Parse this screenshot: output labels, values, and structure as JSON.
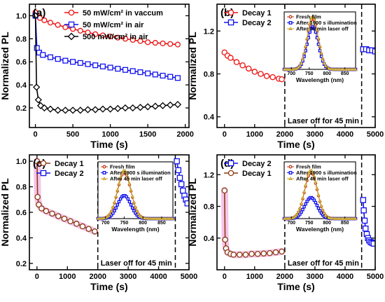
{
  "chart_data": [
    {
      "panel_label": "(a)",
      "type": "scatter",
      "xlabel": "Time (s)",
      "ylabel": "Normalized PL",
      "xlim": [
        -80,
        2050
      ],
      "ylim": [
        0.03,
        1.1
      ],
      "xticks": [
        0,
        500,
        1000,
        1500,
        2000
      ],
      "yticks": [
        0.2,
        0.4,
        0.6,
        0.8,
        1.0
      ],
      "ytick_labels": [
        "0.2",
        "0.4",
        "0.6",
        "0.8",
        "1.0"
      ],
      "legend_position": "top-right",
      "series": [
        {
          "name": "50 mW/cm² in vaccum",
          "color": "#ee1111",
          "marker": "circle",
          "x": [
            0,
            25,
            60,
            120,
            200,
            300,
            400,
            500,
            600,
            700,
            800,
            900,
            1000,
            1100,
            1200,
            1300,
            1400,
            1500,
            1600,
            1700,
            1800,
            1900
          ],
          "y": [
            1.03,
            1.0,
            0.98,
            0.96,
            0.94,
            0.92,
            0.9,
            0.885,
            0.87,
            0.855,
            0.84,
            0.83,
            0.82,
            0.81,
            0.8,
            0.79,
            0.78,
            0.77,
            0.765,
            0.76,
            0.755,
            0.75
          ]
        },
        {
          "name": "50 mW/cm² in air",
          "color": "#1111ee",
          "marker": "square",
          "x": [
            0,
            20,
            50,
            100,
            200,
            300,
            400,
            500,
            600,
            700,
            800,
            900,
            1000,
            1100,
            1200,
            1300,
            1400,
            1500,
            1600,
            1700,
            1800,
            1900
          ],
          "y": [
            1.0,
            0.72,
            0.68,
            0.66,
            0.64,
            0.625,
            0.61,
            0.6,
            0.59,
            0.58,
            0.57,
            0.56,
            0.55,
            0.54,
            0.53,
            0.52,
            0.51,
            0.5,
            0.49,
            0.48,
            0.47,
            0.46
          ]
        },
        {
          "name": "500 mW/cm² in air",
          "color": "#000000",
          "marker": "diamond",
          "x": [
            0,
            15,
            40,
            70,
            120,
            200,
            300,
            400,
            500,
            600,
            700,
            800,
            900,
            1000,
            1100,
            1200,
            1300,
            1400,
            1500,
            1600,
            1700,
            1800,
            1900
          ],
          "y": [
            1.0,
            0.38,
            0.27,
            0.22,
            0.2,
            0.19,
            0.18,
            0.18,
            0.18,
            0.18,
            0.185,
            0.185,
            0.19,
            0.19,
            0.195,
            0.2,
            0.2,
            0.205,
            0.21,
            0.215,
            0.22,
            0.225,
            0.23
          ]
        }
      ]
    },
    {
      "panel_label": "(b)",
      "type": "scatter",
      "xlabel": "Time (s)",
      "ylabel": "Normalized PL",
      "xlim": [
        -250,
        5000
      ],
      "ylim": [
        0.3,
        1.45
      ],
      "xticks": [
        0,
        1000,
        2000,
        3000,
        4000,
        5000
      ],
      "yticks": [
        0.4,
        0.8,
        1.2
      ],
      "ytick_labels": [
        "0.4",
        "0.8",
        "1.2"
      ],
      "legend_position": "top-left",
      "dashed_lines_x": [
        2000,
        4550
      ],
      "annotation": "Laser off for 45 min",
      "series": [
        {
          "name": "Decay 1",
          "color": "#ee1111",
          "marker": "circle",
          "x": [
            0,
            100,
            200,
            400,
            600,
            800,
            1000,
            1200,
            1400,
            1600,
            1800,
            1900
          ],
          "y": [
            1.0,
            0.97,
            0.95,
            0.91,
            0.88,
            0.85,
            0.82,
            0.8,
            0.78,
            0.77,
            0.755,
            0.75
          ]
        },
        {
          "name": "Decay 2",
          "color": "#1111ee",
          "marker": "square",
          "x": [
            4600,
            4700,
            4800,
            4900,
            5000
          ],
          "y": [
            1.03,
            1.03,
            1.02,
            1.02,
            1.01
          ]
        }
      ],
      "inset": {
        "xlabel": "Wavelength (nm)",
        "xlim": [
          680,
          880
        ],
        "xticks": [
          700,
          750,
          800,
          850
        ],
        "legend_position": "top-left",
        "series": [
          {
            "name": "Fresh film",
            "color": "#c43c1a",
            "marker": "circle",
            "center": 760,
            "width": 22,
            "peak": 1.2
          },
          {
            "name": "After 1900 s illumination",
            "color": "#1111ee",
            "marker": "square",
            "center": 760,
            "width": 22,
            "peak": 1.0
          },
          {
            "name": "After 45 min laser off",
            "color": "#c8a020",
            "marker": "triangle",
            "center": 760,
            "width": 22,
            "peak": 1.25
          }
        ]
      }
    },
    {
      "panel_label": "(c)",
      "type": "scatter",
      "xlabel": "Time (s)",
      "ylabel": "Normalized PL",
      "xlim": [
        -250,
        5000
      ],
      "ylim": [
        0.15,
        1.05
      ],
      "xticks": [
        0,
        1000,
        2000,
        3000,
        4000,
        5000
      ],
      "yticks": [
        0.2,
        0.4,
        0.6,
        0.8,
        1.0
      ],
      "ytick_labels": [
        "0.2",
        "0.4",
        "0.6",
        "0.8",
        "1.0"
      ],
      "legend_position": "top-left",
      "dashed_lines_x": [
        2000,
        4550
      ],
      "annotation": "Laser off for 45 min",
      "series": [
        {
          "name": "Decay 1",
          "color": "#8b3a14",
          "marker": "circle",
          "x": [
            0,
            20,
            60,
            150,
            300,
            500,
            700,
            900,
            1100,
            1300,
            1500,
            1700,
            1900
          ],
          "y": [
            1.0,
            0.72,
            0.66,
            0.63,
            0.61,
            0.59,
            0.57,
            0.55,
            0.53,
            0.51,
            0.49,
            0.47,
            0.45
          ]
        },
        {
          "name": "Decay 2",
          "color": "#1111ee",
          "marker": "square",
          "x": [
            4600,
            4650,
            4700,
            4750,
            4800,
            4850,
            4900,
            4950
          ],
          "y": [
            1.0,
            0.93,
            0.87,
            0.82,
            0.77,
            0.73,
            0.7,
            0.67
          ]
        }
      ],
      "inset": {
        "xlabel": "Wavelength (nm)",
        "xlim": [
          680,
          880
        ],
        "xticks": [
          700,
          750,
          800,
          850
        ],
        "legend_position": "top-left",
        "series": [
          {
            "name": "Fresh film",
            "color": "#c43c1a",
            "marker": "circle",
            "center": 750,
            "width": 25,
            "peak": 1.1
          },
          {
            "name": "After 1900 s illumination",
            "color": "#1111ee",
            "marker": "square",
            "center": 750,
            "width": 25,
            "peak": 0.55
          },
          {
            "name": "After 45 min laser off",
            "color": "#c8a020",
            "marker": "triangle",
            "center": 750,
            "width": 25,
            "peak": 1.15
          }
        ]
      }
    },
    {
      "panel_label": "(d)",
      "type": "scatter",
      "xlabel": "Time (s)",
      "ylabel": "Normalized PL",
      "xlim": [
        -250,
        5000
      ],
      "ylim": [
        0.0,
        1.45
      ],
      "xticks": [
        0,
        1000,
        2000,
        3000,
        4000,
        5000
      ],
      "yticks": [
        0.4,
        0.8,
        1.2
      ],
      "ytick_labels": [
        "0.4",
        "0.8",
        "1.2"
      ],
      "legend_position": "top-left",
      "dashed_lines_x": [
        2000,
        4550
      ],
      "annotation": "Laser off for 45 min",
      "series": [
        {
          "name": "Decay 2",
          "color": "#1111ee",
          "marker": "square",
          "x": [
            4600,
            4620,
            4650,
            4680,
            4720,
            4760,
            4800,
            4850,
            4900,
            4950
          ],
          "y": [
            0.88,
            0.75,
            0.62,
            0.52,
            0.45,
            0.4,
            0.37,
            0.35,
            0.34,
            0.33
          ]
        },
        {
          "name": "Decay 1",
          "color": "#8b3a14",
          "marker": "circle",
          "x": [
            0,
            20,
            50,
            100,
            200,
            300,
            500,
            700,
            900,
            1100,
            1300,
            1500,
            1700,
            1900
          ],
          "y": [
            1.0,
            0.38,
            0.27,
            0.22,
            0.2,
            0.19,
            0.19,
            0.19,
            0.2,
            0.2,
            0.205,
            0.21,
            0.22,
            0.23
          ]
        }
      ],
      "inset": {
        "xlabel": "Wavelength (nm)",
        "xlim": [
          680,
          880
        ],
        "xticks": [
          700,
          750,
          800,
          850
        ],
        "legend_position": "top-left",
        "series": [
          {
            "name": "Fresh film",
            "color": "#c43c1a",
            "marker": "circle",
            "center": 755,
            "width": 25,
            "peak": 1.1
          },
          {
            "name": "After 1900 s illumination",
            "color": "#1111ee",
            "marker": "square",
            "center": 755,
            "width": 25,
            "peak": 0.5
          },
          {
            "name": "After 45 min laser off",
            "color": "#c8a020",
            "marker": "triangle",
            "center": 755,
            "width": 25,
            "peak": 1.15
          }
        ]
      }
    }
  ]
}
